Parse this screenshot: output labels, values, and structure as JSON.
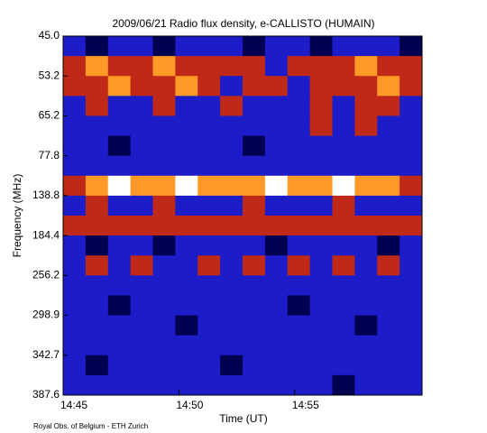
{
  "chart_data": {
    "type": "spectrogram",
    "title": "2009/06/21  Radio flux density, e-CALLISTO (HUMAIN)",
    "x_label": "Time (UT)",
    "y_label": "Frequency (MHz)",
    "footer": "Royal Obs. of Belgium - ETH Zurich",
    "xlim": [
      45,
      60.5
    ],
    "xticks": [
      {
        "value": 45,
        "label": "14:45"
      },
      {
        "value": 50,
        "label": "14:50"
      },
      {
        "value": 55,
        "label": "14:55"
      }
    ],
    "yticks": [
      {
        "value": 45,
        "label": "45.0"
      },
      {
        "value": 53.2,
        "label": "53.2"
      },
      {
        "value": 65.2,
        "label": "65.2"
      },
      {
        "value": 77.8,
        "label": "77.8"
      },
      {
        "value": 138.8,
        "label": "138.8"
      },
      {
        "value": 184.4,
        "label": "184.4"
      },
      {
        "value": 256.2,
        "label": "256.2"
      },
      {
        "value": 298.9,
        "label": "298.9"
      },
      {
        "value": 342.7,
        "label": "342.7"
      },
      {
        "value": 387.6,
        "label": "387.6"
      }
    ],
    "colors": [
      "#000050",
      "#1c1cc8",
      "#c02818",
      "#ff9a28",
      "#ffffff"
    ],
    "z": [
      [
        1,
        0,
        1,
        1,
        0,
        1,
        1,
        1,
        0,
        1,
        1,
        0,
        1,
        1,
        1,
        0
      ],
      [
        2,
        3,
        2,
        2,
        3,
        2,
        2,
        2,
        2,
        1,
        2,
        2,
        2,
        3,
        2,
        2
      ],
      [
        2,
        2,
        3,
        2,
        2,
        3,
        2,
        1,
        2,
        2,
        1,
        2,
        2,
        2,
        3,
        2
      ],
      [
        1,
        2,
        1,
        1,
        2,
        1,
        1,
        2,
        1,
        1,
        1,
        2,
        1,
        2,
        2,
        1
      ],
      [
        1,
        1,
        1,
        1,
        1,
        1,
        1,
        1,
        1,
        1,
        1,
        2,
        1,
        2,
        1,
        1
      ],
      [
        1,
        1,
        0,
        1,
        1,
        1,
        1,
        1,
        0,
        1,
        1,
        1,
        1,
        1,
        1,
        1
      ],
      [
        1,
        1,
        1,
        1,
        1,
        1,
        1,
        1,
        1,
        1,
        1,
        1,
        1,
        1,
        1,
        1
      ],
      [
        2,
        3,
        4,
        3,
        3,
        4,
        3,
        3,
        3,
        4,
        3,
        3,
        4,
        3,
        3,
        2
      ],
      [
        1,
        2,
        1,
        1,
        2,
        1,
        1,
        1,
        2,
        1,
        1,
        1,
        2,
        1,
        1,
        1
      ],
      [
        2,
        2,
        2,
        2,
        2,
        2,
        2,
        2,
        2,
        2,
        2,
        2,
        2,
        2,
        2,
        2
      ],
      [
        1,
        0,
        1,
        1,
        0,
        1,
        1,
        1,
        1,
        0,
        1,
        1,
        1,
        1,
        0,
        1
      ],
      [
        1,
        2,
        1,
        2,
        1,
        1,
        2,
        1,
        2,
        1,
        2,
        1,
        2,
        1,
        2,
        1
      ],
      [
        1,
        1,
        1,
        1,
        1,
        1,
        1,
        1,
        1,
        1,
        1,
        1,
        1,
        1,
        1,
        1
      ],
      [
        1,
        1,
        0,
        1,
        1,
        1,
        1,
        1,
        1,
        1,
        0,
        1,
        1,
        1,
        1,
        1
      ],
      [
        1,
        1,
        1,
        1,
        1,
        0,
        1,
        1,
        1,
        1,
        1,
        1,
        1,
        0,
        1,
        1
      ],
      [
        1,
        1,
        1,
        1,
        1,
        1,
        1,
        1,
        1,
        1,
        1,
        1,
        1,
        1,
        1,
        1
      ],
      [
        1,
        0,
        1,
        1,
        1,
        1,
        1,
        0,
        1,
        1,
        1,
        1,
        1,
        1,
        1,
        1
      ],
      [
        1,
        1,
        1,
        1,
        1,
        1,
        1,
        1,
        1,
        1,
        1,
        1,
        0,
        1,
        1,
        1
      ]
    ]
  }
}
